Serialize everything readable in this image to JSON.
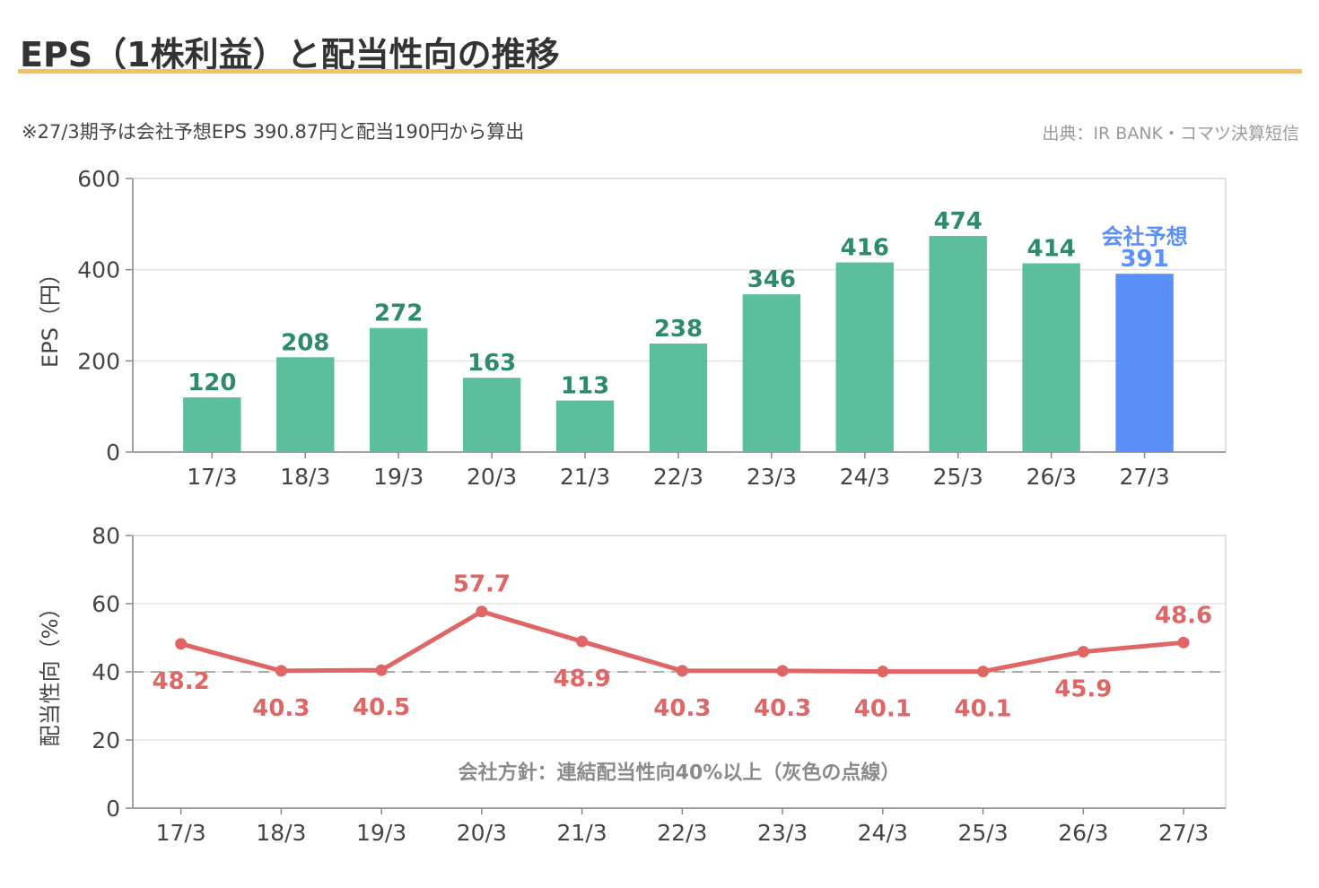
{
  "title": "EPS（1株利益）と配当性向の推移",
  "note": "※27/3期予は会社予想EPS 390.87円と配当190円から算出",
  "source": "出典：IR BANK・コマツ決算短信",
  "colors": {
    "bar": "#5bbf9e",
    "bar_label": "#2e8b6a",
    "forecast_bar": "#5b8ff9",
    "line": "#e06666",
    "accent_rule": "#f1c163",
    "threshold": "#aaaaaa"
  },
  "chart_data": [
    {
      "type": "bar",
      "categories": [
        "17/3",
        "18/3",
        "19/3",
        "20/3",
        "21/3",
        "22/3",
        "23/3",
        "24/3",
        "25/3",
        "26/3",
        "27/3"
      ],
      "values": [
        120,
        208,
        272,
        163,
        113,
        238,
        346,
        416,
        474,
        414,
        391
      ],
      "value_labels": [
        "120",
        "208",
        "272",
        "163",
        "113",
        "238",
        "346",
        "416",
        "474",
        "414",
        "391"
      ],
      "forecast_label": "会社予想",
      "forecast_category": "27/3",
      "ylabel": "EPS（円）",
      "ylim": [
        0,
        600
      ],
      "yticks": [
        0,
        200,
        400,
        600
      ],
      "grid": true
    },
    {
      "type": "line",
      "categories": [
        "17/3",
        "18/3",
        "19/3",
        "20/3",
        "21/3",
        "22/3",
        "23/3",
        "24/3",
        "25/3",
        "26/3",
        "27/3"
      ],
      "values": [
        48.2,
        40.3,
        40.5,
        57.7,
        48.9,
        40.3,
        40.3,
        40.1,
        40.1,
        45.9,
        48.6
      ],
      "value_labels": [
        "48.2",
        "40.3",
        "40.5",
        "57.7",
        "48.9",
        "40.3",
        "40.3",
        "40.1",
        "40.1",
        "45.9",
        "48.6"
      ],
      "label_positions": [
        "below",
        "below",
        "below",
        "above",
        "below",
        "below",
        "below",
        "below",
        "below",
        "below",
        "above"
      ],
      "ylabel": "配当性向（%）",
      "ylim": [
        0,
        80
      ],
      "yticks": [
        0,
        20,
        40,
        60,
        80
      ],
      "threshold": 40,
      "threshold_label": "会社方針：連結配当性向40%以上（灰色の点線）",
      "grid": true
    }
  ]
}
